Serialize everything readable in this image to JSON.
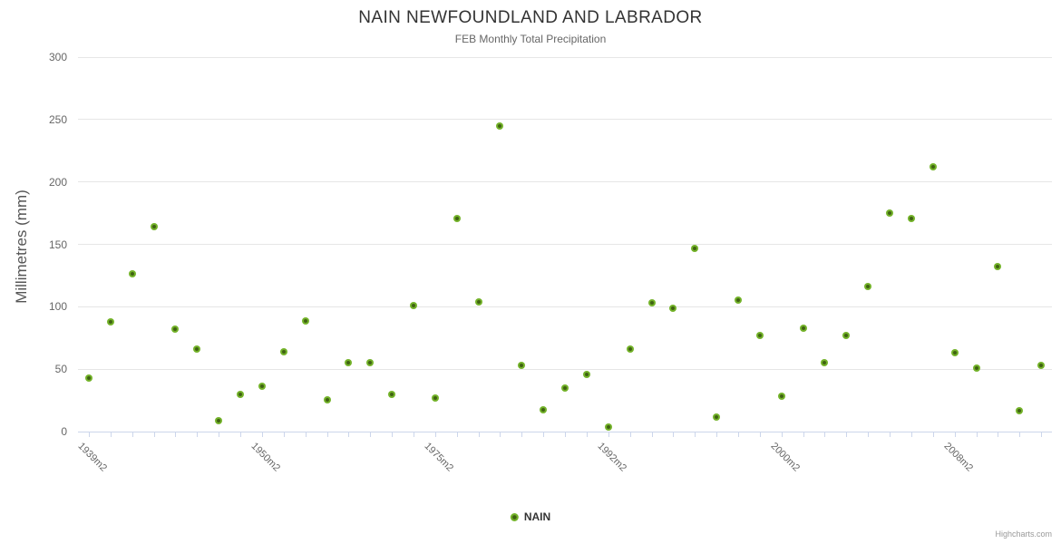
{
  "credits": "Highcharts.com",
  "colors": {
    "marker_outer": "#74b32a",
    "marker_inner": "#3f6212",
    "gridline": "#e6e6e6",
    "axis_line": "#ccd6eb",
    "title_text": "#333333",
    "muted_text": "#666666",
    "credits_text": "#999999"
  },
  "y_axis": {
    "title": "Millimetres (mm)",
    "tick_values": [
      0,
      50,
      100,
      150,
      200,
      250,
      300
    ]
  },
  "x_axis": {
    "tick_labels": [
      {
        "index": 0,
        "text": "1939m2"
      },
      {
        "index": 8,
        "text": "1950m2"
      },
      {
        "index": 16,
        "text": "1975m2"
      },
      {
        "index": 24,
        "text": "1992m2"
      },
      {
        "index": 32,
        "text": "2000m2"
      },
      {
        "index": 40,
        "text": "2008m2"
      }
    ]
  },
  "chart_data": {
    "type": "scatter",
    "title": "NAIN NEWFOUNDLAND AND LABRADOR",
    "subtitle": "FEB Monthly Total Precipitation",
    "ylabel": "Millimetres (mm)",
    "ylim": [
      0,
      300
    ],
    "y_tick_interval": 50,
    "grid": "horizontal",
    "legend_position": "bottom-center",
    "n_points": 45,
    "x_tick_labels_shown": [
      "1939m2",
      "1950m2",
      "1975m2",
      "1992m2",
      "2000m2",
      "2008m2"
    ],
    "series": [
      {
        "name": "NAIN",
        "color": "#74b32a",
        "values": [
          42.6,
          87.6,
          126.1,
          163.9,
          82.0,
          66.4,
          8.7,
          29.7,
          36.3,
          63.9,
          88.4,
          25.4,
          55.1,
          55.1,
          29.7,
          100.8,
          26.8,
          171.1,
          103.7,
          245.1,
          52.9,
          17.4,
          34.6,
          45.9,
          3.6,
          66.0,
          103.0,
          98.6,
          146.5,
          11.6,
          105.1,
          76.9,
          28.3,
          82.7,
          55.1,
          76.9,
          116.0,
          174.8,
          170.4,
          212.4,
          63.1,
          50.8,
          132.0,
          16.7,
          53.0
        ]
      }
    ]
  }
}
